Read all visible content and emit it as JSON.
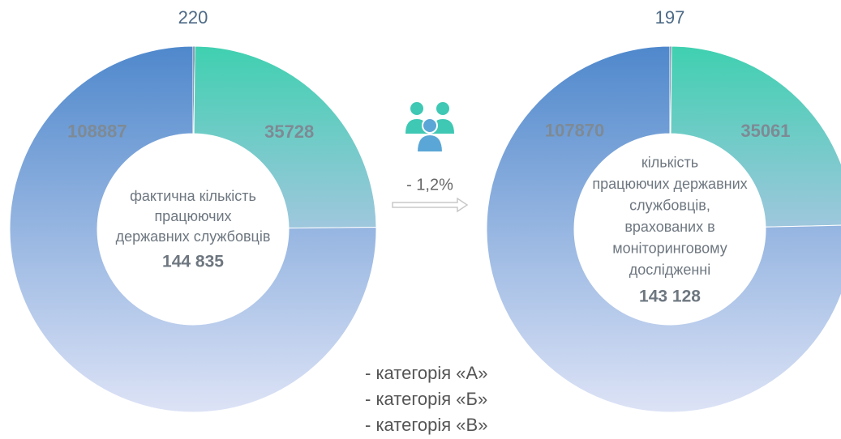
{
  "chart_data": [
    {
      "type": "donut",
      "values": [
        220,
        35728,
        108887
      ],
      "colors": [
        "#1f3a68",
        "#3fd0b0",
        "#4f88cc"
      ],
      "center_lines": [
        "фактична кількість",
        "працюючих",
        "державних службовців"
      ],
      "total_label": "144 835"
    },
    {
      "type": "donut",
      "values": [
        197,
        35061,
        107870
      ],
      "colors": [
        "#1f3a68",
        "#3fd0b0",
        "#4f88cc"
      ],
      "center_lines": [
        "кількість",
        "працюючих державних",
        "службовців,",
        "врахованих в",
        "моніторинговому",
        "дослідженні"
      ],
      "total_label": "143 128"
    }
  ],
  "change": "- 1,2%",
  "legend": [
    "- категорія «А»",
    "- категорія «Б»",
    "- категорія «В»"
  ]
}
